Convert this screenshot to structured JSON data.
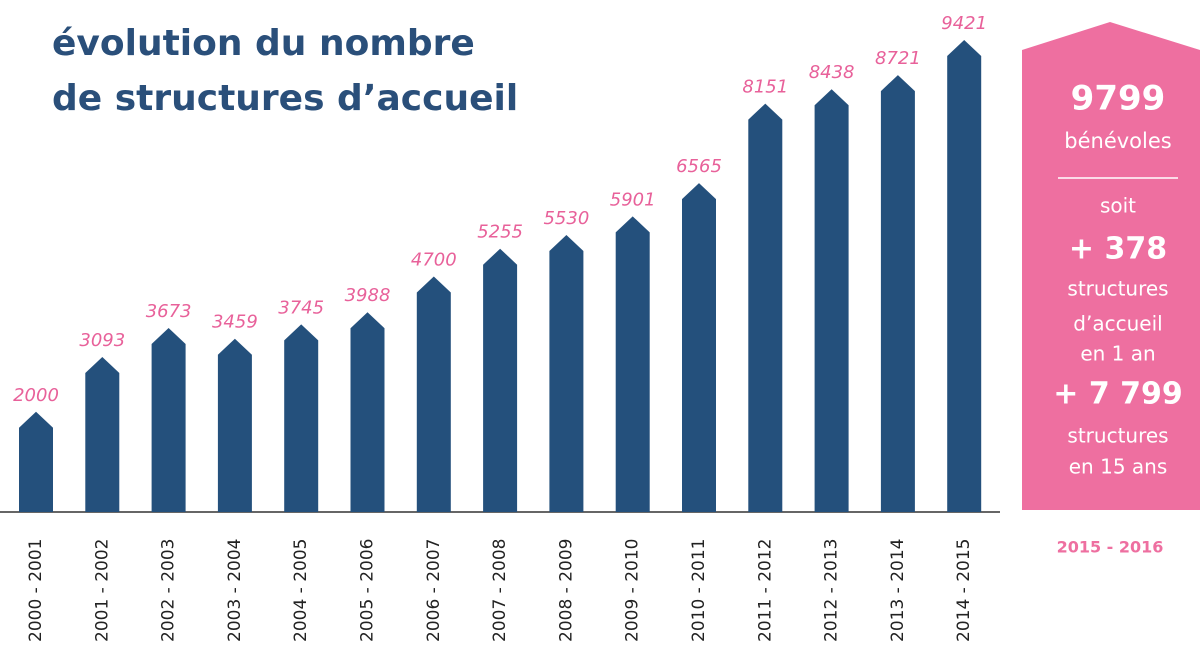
{
  "chart_data": {
    "type": "bar",
    "title": [
      "évolution du nombre",
      "de structures d’accueil"
    ],
    "categories": [
      "2000 - 2001",
      "2001 - 2002",
      "2002 - 2003",
      "2003 - 2004",
      "2004 - 2005",
      "2005 - 2006",
      "2006 - 2007",
      "2007 - 2008",
      "2008 - 2009",
      "2009 - 2010",
      "2010 - 2011",
      "2011 - 2012",
      "2012 - 2013",
      "2013 - 2014",
      "2014 - 2015"
    ],
    "values": [
      2000,
      3093,
      3673,
      3459,
      3745,
      3988,
      4700,
      5255,
      5530,
      5901,
      6565,
      8151,
      8438,
      8721,
      9421
    ],
    "color": "#24507c",
    "label_color": "#e8619a"
  },
  "sidebar": {
    "period": "2015 - 2016",
    "volunteers": 9799,
    "volunteers_label": "bénévoles",
    "lines": [
      "soit",
      "+ 378",
      "structures",
      "d’accueil",
      "en 1 an",
      "+ 7 799",
      "structures",
      "en 15 ans"
    ],
    "color": "#ee6fa0"
  }
}
